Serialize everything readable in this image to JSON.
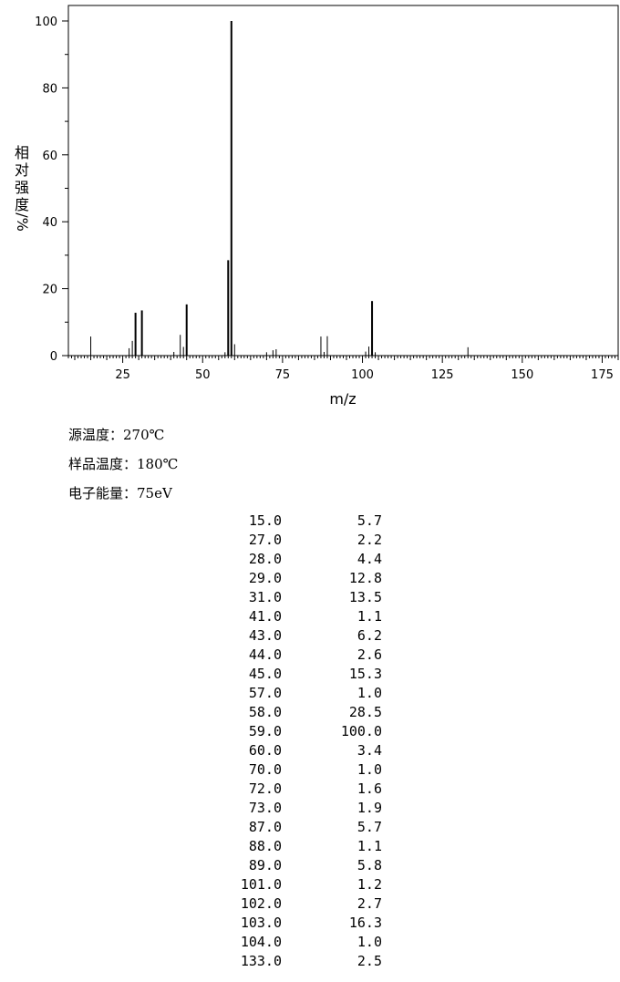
{
  "chart_data": {
    "type": "bar",
    "xlabel": "m/z",
    "ylabel": "相对强度/%",
    "xlim": [
      8,
      180
    ],
    "ylim": [
      0,
      100
    ],
    "x_ticks": [
      25,
      50,
      75,
      100,
      125,
      150,
      175
    ],
    "y_ticks": [
      0,
      20,
      40,
      60,
      80,
      100
    ],
    "peaks": [
      {
        "mz": 15.0,
        "intensity": 5.7
      },
      {
        "mz": 27.0,
        "intensity": 2.2
      },
      {
        "mz": 28.0,
        "intensity": 4.4
      },
      {
        "mz": 29.0,
        "intensity": 12.8
      },
      {
        "mz": 31.0,
        "intensity": 13.5
      },
      {
        "mz": 41.0,
        "intensity": 1.1
      },
      {
        "mz": 43.0,
        "intensity": 6.2
      },
      {
        "mz": 44.0,
        "intensity": 2.6
      },
      {
        "mz": 45.0,
        "intensity": 15.3
      },
      {
        "mz": 57.0,
        "intensity": 1.0
      },
      {
        "mz": 58.0,
        "intensity": 28.5
      },
      {
        "mz": 59.0,
        "intensity": 100.0
      },
      {
        "mz": 60.0,
        "intensity": 3.4
      },
      {
        "mz": 70.0,
        "intensity": 1.0
      },
      {
        "mz": 72.0,
        "intensity": 1.6
      },
      {
        "mz": 73.0,
        "intensity": 1.9
      },
      {
        "mz": 87.0,
        "intensity": 5.7
      },
      {
        "mz": 88.0,
        "intensity": 1.1
      },
      {
        "mz": 89.0,
        "intensity": 5.8
      },
      {
        "mz": 101.0,
        "intensity": 1.2
      },
      {
        "mz": 102.0,
        "intensity": 2.7
      },
      {
        "mz": 103.0,
        "intensity": 16.3
      },
      {
        "mz": 104.0,
        "intensity": 1.0
      },
      {
        "mz": 133.0,
        "intensity": 2.5
      }
    ]
  },
  "conditions": {
    "source_temp": "源温度：270℃",
    "sample_temp": "样品温度：180℃",
    "electron_energy": "电子能量：75eV"
  },
  "ylabel_chars": [
    "相",
    "对",
    "强",
    "度"
  ],
  "ylabel_suffix": "/%",
  "table": [
    [
      "15.0",
      "5.7"
    ],
    [
      "27.0",
      "2.2"
    ],
    [
      "28.0",
      "4.4"
    ],
    [
      "29.0",
      "12.8"
    ],
    [
      "31.0",
      "13.5"
    ],
    [
      "41.0",
      "1.1"
    ],
    [
      "43.0",
      "6.2"
    ],
    [
      "44.0",
      "2.6"
    ],
    [
      "45.0",
      "15.3"
    ],
    [
      "57.0",
      "1.0"
    ],
    [
      "58.0",
      "28.5"
    ],
    [
      "59.0",
      "100.0"
    ],
    [
      "60.0",
      "3.4"
    ],
    [
      "70.0",
      "1.0"
    ],
    [
      "72.0",
      "1.6"
    ],
    [
      "73.0",
      "1.9"
    ],
    [
      "87.0",
      "5.7"
    ],
    [
      "88.0",
      "1.1"
    ],
    [
      "89.0",
      "5.8"
    ],
    [
      "101.0",
      "1.2"
    ],
    [
      "102.0",
      "2.7"
    ],
    [
      "103.0",
      "16.3"
    ],
    [
      "104.0",
      "1.0"
    ],
    [
      "133.0",
      "2.5"
    ]
  ]
}
